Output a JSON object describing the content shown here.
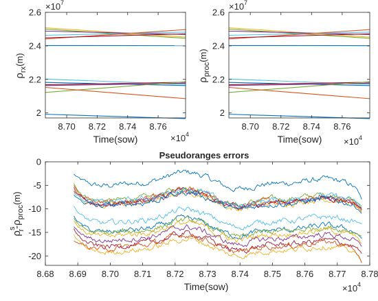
{
  "chart_data": [
    {
      "type": "line",
      "id": "rx",
      "ylabel_main": "ρ",
      "ylabel_sub": "rx",
      "ylabel_unit": "(m)",
      "xlabel": "Time(sow)",
      "x_exponent_base": "×10",
      "x_exponent_power": "4",
      "y_exponent_base": "×10",
      "y_exponent_power": "7",
      "xlim": [
        8.686,
        8.778
      ],
      "ylim": [
        1.97,
        2.6
      ],
      "xticks": [
        8.7,
        8.72,
        8.74,
        8.76
      ],
      "yticks": [
        2,
        2.2,
        2.4,
        2.6
      ],
      "series": [
        {
          "color": "#EDB120",
          "y0": 2.508,
          "y1": 2.452
        },
        {
          "color": "#77AC30",
          "y0": 2.5,
          "y1": 2.445
        },
        {
          "color": "#7E2F8E",
          "y0": 2.488,
          "y1": 2.468
        },
        {
          "color": "#4DBEEE",
          "y0": 2.463,
          "y1": 2.482
        },
        {
          "color": "#D95319",
          "y0": 2.441,
          "y1": 2.497
        },
        {
          "color": "#A2142F",
          "y0": 2.448,
          "y1": 2.472
        },
        {
          "color": "#0072BD",
          "y0": 2.402,
          "y1": 2.401
        },
        {
          "color": "#4DBEEE",
          "y0": 2.202,
          "y1": 2.17
        },
        {
          "color": "#0072BD",
          "y0": 2.182,
          "y1": 2.163
        },
        {
          "color": "#A2142F",
          "y0": 2.168,
          "y1": 2.183
        },
        {
          "color": "#7E2F8E",
          "y0": 2.163,
          "y1": 2.177
        },
        {
          "color": "#77AC30",
          "y0": 2.122,
          "y1": 2.186
        },
        {
          "color": "#D95319",
          "y0": 2.152,
          "y1": 2.085
        },
        {
          "color": "#0072BD",
          "y0": 1.992,
          "y1": 1.966
        }
      ]
    },
    {
      "type": "line",
      "id": "proc",
      "ylabel_main": "ρ",
      "ylabel_sub": "proc",
      "ylabel_unit": "(m)",
      "xlabel": "Time(sow)",
      "x_exponent_base": "×10",
      "x_exponent_power": "4",
      "y_exponent_base": "×10",
      "y_exponent_power": "7",
      "xlim": [
        8.686,
        8.778
      ],
      "ylim": [
        1.97,
        2.6
      ],
      "xticks": [
        8.7,
        8.72,
        8.74,
        8.76
      ],
      "yticks": [
        2,
        2.2,
        2.4,
        2.6
      ],
      "series": [
        {
          "color": "#EDB120",
          "y0": 2.508,
          "y1": 2.452
        },
        {
          "color": "#77AC30",
          "y0": 2.5,
          "y1": 2.445
        },
        {
          "color": "#7E2F8E",
          "y0": 2.488,
          "y1": 2.468
        },
        {
          "color": "#4DBEEE",
          "y0": 2.463,
          "y1": 2.482
        },
        {
          "color": "#D95319",
          "y0": 2.441,
          "y1": 2.497
        },
        {
          "color": "#A2142F",
          "y0": 2.448,
          "y1": 2.472
        },
        {
          "color": "#0072BD",
          "y0": 2.402,
          "y1": 2.401
        },
        {
          "color": "#4DBEEE",
          "y0": 2.202,
          "y1": 2.17
        },
        {
          "color": "#0072BD",
          "y0": 2.182,
          "y1": 2.163
        },
        {
          "color": "#A2142F",
          "y0": 2.168,
          "y1": 2.183
        },
        {
          "color": "#7E2F8E",
          "y0": 2.163,
          "y1": 2.177
        },
        {
          "color": "#77AC30",
          "y0": 2.122,
          "y1": 2.186
        },
        {
          "color": "#D95319",
          "y0": 2.152,
          "y1": 2.085
        },
        {
          "color": "#0072BD",
          "y0": 1.992,
          "y1": 1.966
        }
      ]
    },
    {
      "type": "line",
      "id": "err",
      "title": "Pseudoranges errors",
      "ylabel_main": "ρ",
      "ylabel_sup": "s",
      "ylabel_sub1": "r",
      "ylabel_mid": "-ρ",
      "ylabel_sub2": "proc",
      "ylabel_unit": "(m)",
      "xlabel": "Time(sow)",
      "x_exponent_base": "×10",
      "x_exponent_power": "4",
      "xlim": [
        8.68,
        8.78
      ],
      "ylim": [
        -22,
        0
      ],
      "xticks": [
        8.68,
        8.69,
        8.7,
        8.71,
        8.72,
        8.73,
        8.74,
        8.75,
        8.76,
        8.77,
        8.78
      ],
      "yticks": [
        -20,
        -15,
        -10,
        -5,
        0
      ],
      "x_start": 8.6888,
      "x_end": 8.7775,
      "series": [
        {
          "color": "#0072BD",
          "base": -4.6,
          "start": -2.6,
          "end": -8.0
        },
        {
          "color": "#77AC30",
          "base": -7.9,
          "start": -4.6,
          "end": -10.0
        },
        {
          "color": "#D95319",
          "base": -8.3,
          "start": -5.0,
          "end": -10.5
        },
        {
          "color": "#7E2F8E",
          "base": -8.6,
          "start": -5.4,
          "end": -9.8
        },
        {
          "color": "#EDB120",
          "base": -8.8,
          "start": -5.8,
          "end": -10.8
        },
        {
          "color": "#A2142F",
          "base": -8.5,
          "start": -6.2,
          "end": -10.2
        },
        {
          "color": "#4DBEEE",
          "base": -8.1,
          "start": -6.6,
          "end": -9.5
        },
        {
          "color": "#0072BD",
          "base": -8.9,
          "start": -7.0,
          "end": -11.0
        },
        {
          "color": "#4DBEEE",
          "base": -12.6,
          "start": -9.4,
          "end": -13.2
        },
        {
          "color": "#0072BD",
          "base": -14.5,
          "start": -11.5,
          "end": -16.3
        },
        {
          "color": "#77AC30",
          "base": -14.8,
          "start": -12.0,
          "end": -15.8
        },
        {
          "color": "#EDB120",
          "base": -15.4,
          "start": -12.5,
          "end": -17.4
        },
        {
          "color": "#7E2F8E",
          "base": -16.3,
          "start": -13.8,
          "end": -18.0
        },
        {
          "color": "#A2142F",
          "base": -17.6,
          "start": -14.2,
          "end": -19.5
        },
        {
          "color": "#EDB120",
          "base": -18.8,
          "start": -15.5,
          "end": -21.2
        },
        {
          "color": "#D95319",
          "base": -17.9,
          "start": -16.8,
          "end": -21.5
        }
      ]
    }
  ]
}
